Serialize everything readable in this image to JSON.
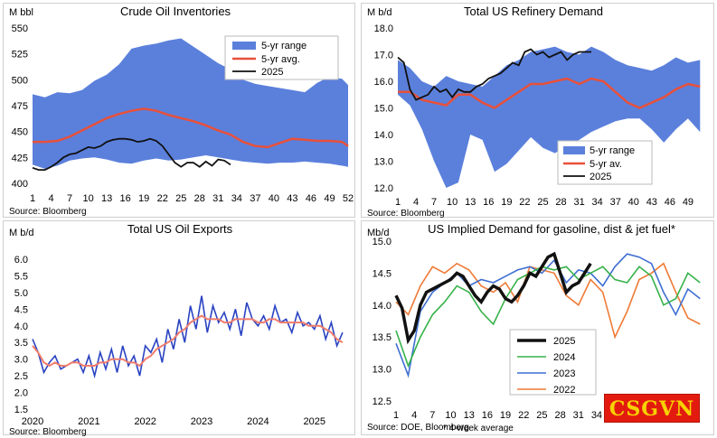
{
  "colors": {
    "range": "#5b80dc",
    "avg": "#e8503a",
    "current": "#111111",
    "line2024": "#36b24a",
    "line2023": "#3f6fd2",
    "line2022": "#ef7a35",
    "exports": "#2a43c2",
    "exports_avg": "#f07c6c"
  },
  "watermark": "CSGVN",
  "chart_data": [
    {
      "type": "area",
      "title": "Crude Oil Inventories",
      "ylabel": "M bbl",
      "source": "Source: Bloomberg",
      "ylim": [
        400,
        550
      ],
      "yticks": [
        400,
        425,
        450,
        475,
        500,
        525,
        550
      ],
      "xlim": [
        1,
        52
      ],
      "xticks": [
        1,
        4,
        7,
        10,
        13,
        16,
        19,
        22,
        25,
        28,
        31,
        34,
        37,
        40,
        43,
        46,
        49,
        52
      ],
      "legend": [
        "5-yr range",
        "5-yr avg.",
        "2025"
      ],
      "range_weeks": [
        1,
        3,
        5,
        7,
        9,
        11,
        13,
        15,
        17,
        19,
        21,
        23,
        25,
        27,
        29,
        31,
        33,
        35,
        37,
        39,
        41,
        43,
        45,
        47,
        49,
        51,
        52
      ],
      "range_high": [
        486,
        483,
        488,
        487,
        490,
        499,
        505,
        515,
        530,
        533,
        535,
        538,
        540,
        532,
        524,
        516,
        510,
        500,
        496,
        494,
        492,
        490,
        488,
        497,
        503,
        501,
        495
      ],
      "range_low": [
        418,
        414,
        417,
        422,
        424,
        425,
        423,
        420,
        419,
        422,
        424,
        422,
        423,
        425,
        427,
        425,
        423,
        421,
        420,
        419,
        420,
        420,
        421,
        420,
        419,
        417,
        416
      ],
      "avg_weeks": [
        1,
        3,
        5,
        7,
        9,
        11,
        13,
        15,
        17,
        19,
        21,
        23,
        25,
        27,
        29,
        31,
        33,
        35,
        37,
        39,
        41,
        43,
        45,
        47,
        49,
        51,
        52
      ],
      "avg": [
        440,
        440,
        441,
        445,
        451,
        457,
        463,
        467,
        470,
        472,
        470,
        466,
        463,
        460,
        456,
        451,
        447,
        440,
        436,
        435,
        439,
        443,
        442,
        441,
        441,
        440,
        436
      ],
      "current_weeks": [
        1,
        2,
        3,
        4,
        5,
        6,
        7,
        8,
        9,
        10,
        11,
        12,
        13,
        14,
        15,
        16,
        17,
        18,
        19,
        20,
        21,
        22,
        23,
        24,
        25,
        26,
        27,
        28,
        29,
        30,
        31,
        32,
        33
      ],
      "current": [
        415,
        413,
        413,
        416,
        420,
        425,
        428,
        429,
        432,
        435,
        434,
        436,
        440,
        442,
        443,
        443,
        442,
        440,
        441,
        443,
        441,
        436,
        428,
        420,
        416,
        420,
        420,
        416,
        421,
        417,
        423,
        422,
        418
      ]
    },
    {
      "type": "area",
      "title": "Total US Refinery Demand",
      "ylabel": "M b/d",
      "source": "Source: Bloomberg",
      "ylim": [
        12,
        18
      ],
      "yticks": [
        12.0,
        13.0,
        14.0,
        15.0,
        16.0,
        17.0,
        18.0
      ],
      "xlim": [
        1,
        52
      ],
      "xticks": [
        1,
        4,
        7,
        10,
        13,
        16,
        19,
        22,
        25,
        28,
        31,
        34,
        37,
        40,
        43,
        46,
        49
      ],
      "legend": [
        "5-yr range",
        "5-yr av.",
        "2025"
      ],
      "range_weeks": [
        1,
        3,
        5,
        7,
        9,
        11,
        13,
        15,
        17,
        19,
        21,
        23,
        25,
        27,
        29,
        31,
        33,
        35,
        37,
        39,
        41,
        43,
        45,
        47,
        49,
        51
      ],
      "range_high": [
        16.8,
        16.5,
        16.0,
        15.8,
        16.2,
        16.0,
        15.9,
        15.8,
        16.2,
        16.6,
        16.8,
        17.1,
        17.2,
        17.3,
        17.1,
        17.0,
        17.3,
        17.1,
        16.8,
        16.6,
        16.5,
        16.4,
        16.6,
        16.9,
        16.7,
        16.8
      ],
      "range_low": [
        15.5,
        15.1,
        14.2,
        13.0,
        12.0,
        12.2,
        14.0,
        13.8,
        12.6,
        12.9,
        13.4,
        13.9,
        13.5,
        13.3,
        13.6,
        13.8,
        14.1,
        14.3,
        14.5,
        14.6,
        14.6,
        14.2,
        13.7,
        14.2,
        14.6,
        14.1
      ],
      "avg_weeks": [
        1,
        3,
        5,
        7,
        9,
        11,
        13,
        15,
        17,
        19,
        21,
        23,
        25,
        27,
        29,
        31,
        33,
        35,
        37,
        39,
        41,
        43,
        45,
        47,
        49,
        51
      ],
      "avg": [
        15.6,
        15.6,
        15.3,
        15.2,
        15.1,
        15.5,
        15.5,
        15.2,
        15.0,
        15.3,
        15.6,
        15.9,
        15.9,
        16.0,
        16.1,
        15.9,
        16.1,
        16.0,
        15.6,
        15.2,
        15.0,
        15.2,
        15.4,
        15.7,
        15.9,
        15.8
      ],
      "current_weeks": [
        1,
        2,
        3,
        4,
        5,
        6,
        7,
        8,
        9,
        10,
        11,
        12,
        13,
        14,
        15,
        16,
        17,
        18,
        19,
        20,
        21,
        22,
        23,
        24,
        25,
        26,
        27,
        28,
        29,
        30,
        31,
        32,
        33
      ],
      "current": [
        16.9,
        16.7,
        15.7,
        15.3,
        15.4,
        15.5,
        15.8,
        15.6,
        15.7,
        15.4,
        15.7,
        15.6,
        15.6,
        15.8,
        15.9,
        16.1,
        16.2,
        16.3,
        16.5,
        16.7,
        16.6,
        17.1,
        17.2,
        17.0,
        17.1,
        16.9,
        17.0,
        17.1,
        16.8,
        17.0,
        17.1,
        17.1,
        17.1
      ]
    },
    {
      "type": "line",
      "title": "Total US Oil Exports",
      "ylabel": "M b/d",
      "source": "Source: Bloomberg",
      "ylim": [
        1.5,
        6.0
      ],
      "yticks": [
        1.5,
        2.0,
        2.5,
        3.0,
        3.5,
        4.0,
        4.5,
        5.0,
        5.5,
        6.0
      ],
      "xlim": [
        2020.0,
        2025.55
      ],
      "xticks": [
        "2020",
        "2021",
        "2022",
        "2023",
        "2024",
        "2025"
      ],
      "series": [
        {
          "x": [
            2020.0,
            2020.1,
            2020.2,
            2020.3,
            2020.4,
            2020.5,
            2020.6,
            2020.7,
            2020.8,
            2020.9,
            2021.0,
            2021.1,
            2021.2,
            2021.3,
            2021.4,
            2021.5,
            2021.6,
            2021.7,
            2021.8,
            2021.9,
            2022.0,
            2022.1,
            2022.2,
            2022.3,
            2022.4,
            2022.5,
            2022.6,
            2022.7,
            2022.8,
            2022.9,
            2023.0,
            2023.1,
            2023.2,
            2023.3,
            2023.4,
            2023.5,
            2023.6,
            2023.7,
            2023.8,
            2023.9,
            2024.0,
            2024.1,
            2024.2,
            2024.3,
            2024.4,
            2024.5,
            2024.6,
            2024.7,
            2024.8,
            2024.9,
            2025.0,
            2025.1,
            2025.2,
            2025.3,
            2025.4,
            2025.5
          ],
          "y": [
            3.6,
            3.2,
            2.6,
            2.9,
            3.1,
            2.7,
            2.8,
            2.9,
            3.0,
            2.6,
            3.1,
            2.5,
            3.2,
            2.7,
            3.3,
            2.6,
            3.4,
            2.8,
            3.1,
            2.5,
            3.4,
            3.2,
            3.6,
            2.9,
            3.9,
            3.3,
            4.2,
            3.5,
            4.6,
            3.9,
            4.9,
            3.8,
            4.6,
            4.1,
            4.4,
            3.9,
            4.5,
            3.7,
            4.7,
            4.2,
            4.0,
            4.3,
            3.9,
            4.6,
            4.1,
            4.2,
            3.8,
            4.4,
            4.0,
            4.1,
            3.9,
            4.3,
            3.6,
            4.1,
            3.4,
            3.8
          ]
        },
        {
          "x": [
            2020.0,
            2020.1,
            2020.2,
            2020.3,
            2020.4,
            2020.5,
            2020.6,
            2020.7,
            2020.8,
            2020.9,
            2021.0,
            2021.1,
            2021.2,
            2021.3,
            2021.4,
            2021.5,
            2021.6,
            2021.7,
            2021.8,
            2021.9,
            2022.0,
            2022.1,
            2022.2,
            2022.3,
            2022.4,
            2022.5,
            2022.6,
            2022.7,
            2022.8,
            2022.9,
            2023.0,
            2023.1,
            2023.2,
            2023.3,
            2023.4,
            2023.5,
            2023.6,
            2023.7,
            2023.8,
            2023.9,
            2024.0,
            2024.1,
            2024.2,
            2024.3,
            2024.4,
            2024.5,
            2024.6,
            2024.7,
            2024.8,
            2024.9,
            2025.0,
            2025.1,
            2025.2,
            2025.3,
            2025.4,
            2025.5
          ],
          "y": [
            3.4,
            3.2,
            2.9,
            2.8,
            2.9,
            2.8,
            2.8,
            2.9,
            2.9,
            2.8,
            2.8,
            2.8,
            2.9,
            2.9,
            3.0,
            3.0,
            3.0,
            2.9,
            2.9,
            2.8,
            3.0,
            3.1,
            3.3,
            3.4,
            3.5,
            3.6,
            3.8,
            3.9,
            4.1,
            4.2,
            4.3,
            4.2,
            4.2,
            4.2,
            4.1,
            4.1,
            4.2,
            4.2,
            4.2,
            4.2,
            4.1,
            4.1,
            4.2,
            4.2,
            4.1,
            4.1,
            4.1,
            4.1,
            4.1,
            4.0,
            4.0,
            4.0,
            3.9,
            3.8,
            3.6,
            3.5
          ]
        }
      ]
    },
    {
      "type": "line",
      "title": "US Implied Demand  for gasoline, dist & jet fuel*",
      "ylabel": "Mb/d",
      "source": "Source: DOE, Bloomberg",
      "note": "* 4-week average",
      "ylim": [
        12.5,
        15.0
      ],
      "yticks": [
        12.5,
        13.0,
        13.5,
        14.0,
        14.5,
        15.0
      ],
      "xlim": [
        1,
        52
      ],
      "xticks": [
        1,
        4,
        7,
        10,
        13,
        16,
        19,
        22,
        25,
        28,
        31,
        34,
        37,
        40,
        43,
        46,
        49
      ],
      "series": [
        {
          "name": "2025",
          "x": [
            1,
            2,
            3,
            4,
            5,
            6,
            7,
            8,
            9,
            10,
            11,
            12,
            13,
            14,
            15,
            16,
            17,
            18,
            19,
            20,
            21,
            22,
            23,
            24,
            25,
            26,
            27,
            28,
            29,
            30,
            31,
            32,
            33
          ],
          "y": [
            14.15,
            13.95,
            13.45,
            13.6,
            14.0,
            14.2,
            14.25,
            14.3,
            14.35,
            14.4,
            14.5,
            14.45,
            14.3,
            14.15,
            14.05,
            14.2,
            14.3,
            14.25,
            14.1,
            14.05,
            14.15,
            14.3,
            14.5,
            14.45,
            14.6,
            14.75,
            14.8,
            14.5,
            14.2,
            14.3,
            14.35,
            14.5,
            14.65
          ]
        },
        {
          "name": "2024",
          "x": [
            1,
            3,
            5,
            7,
            9,
            11,
            13,
            15,
            17,
            19,
            21,
            23,
            25,
            27,
            29,
            31,
            33,
            35,
            37,
            39,
            41,
            43,
            45,
            47,
            49,
            51
          ],
          "y": [
            13.6,
            13.05,
            13.5,
            13.85,
            14.05,
            14.3,
            14.2,
            13.9,
            13.7,
            14.1,
            14.4,
            14.5,
            14.6,
            14.55,
            14.6,
            14.4,
            14.5,
            14.6,
            14.4,
            14.35,
            14.6,
            14.45,
            14.0,
            14.1,
            14.5,
            14.35
          ]
        },
        {
          "name": "2023",
          "x": [
            1,
            3,
            5,
            7,
            9,
            11,
            13,
            15,
            17,
            19,
            21,
            23,
            25,
            27,
            29,
            31,
            33,
            35,
            37,
            39,
            41,
            43,
            45,
            47,
            49,
            51
          ],
          "y": [
            13.4,
            12.9,
            13.9,
            14.2,
            14.35,
            14.5,
            14.3,
            14.4,
            14.35,
            14.45,
            14.55,
            14.6,
            14.5,
            14.7,
            14.35,
            14.55,
            14.5,
            14.3,
            14.6,
            14.8,
            14.75,
            14.65,
            14.2,
            13.85,
            14.25,
            14.1
          ]
        },
        {
          "name": "2022",
          "x": [
            1,
            3,
            5,
            7,
            9,
            11,
            13,
            15,
            17,
            19,
            21,
            23,
            25,
            27,
            29,
            31,
            33,
            35,
            37,
            39,
            41,
            43,
            45,
            47,
            49,
            51
          ],
          "y": [
            14.05,
            13.85,
            14.3,
            14.6,
            14.5,
            14.65,
            14.55,
            14.3,
            14.2,
            14.35,
            14.05,
            14.6,
            14.55,
            14.5,
            14.15,
            14.0,
            14.4,
            14.2,
            13.5,
            13.9,
            14.4,
            14.5,
            14.65,
            14.2,
            13.8,
            13.7
          ]
        }
      ]
    }
  ]
}
